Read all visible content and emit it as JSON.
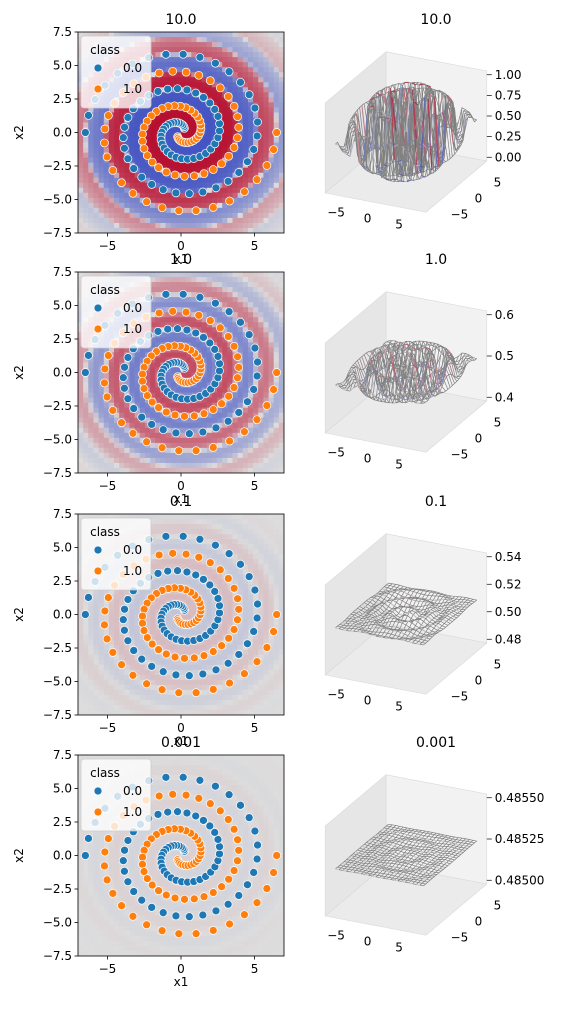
{
  "figure": {
    "colors": {
      "class0": "#1f77b4",
      "class1": "#ff7f0e",
      "cmap_low": "#3b4cc0",
      "cmap_mid": "#dddddd",
      "cmap_high": "#b40426",
      "surface_wire": "#808080",
      "pane": "#f2f2f2",
      "grid": "#d9d9d9"
    },
    "legend_title": "class",
    "xlabel": "x1",
    "ylabel": "x2"
  },
  "chart_data": [
    {
      "type": "scatter",
      "title": "10.0",
      "xlabel": "x1",
      "ylabel": "x2",
      "xlim": [
        -7,
        7
      ],
      "ylim": [
        -7.5,
        7.5
      ],
      "xticks": [
        -5,
        0,
        5
      ],
      "yticks": [
        -7.5,
        -5.0,
        -2.5,
        0.0,
        2.5,
        5.0,
        7.5
      ],
      "ytick_labels": [
        "−7.5",
        "−5.0",
        "−2.5",
        "0.0",
        "2.5",
        "5.0",
        "7.5"
      ],
      "xtick_labels": [
        "−5",
        "0",
        "5"
      ],
      "legend": {
        "title": "class",
        "entries": [
          "0.0",
          "1.0"
        ],
        "loc": "upper left"
      },
      "series": [
        {
          "name": "0.0",
          "spiral": {
            "turns": 2.5,
            "r_max": 6.5,
            "phase_deg": 0,
            "points": 75
          }
        },
        {
          "name": "1.0",
          "spiral": {
            "turns": 2.5,
            "r_max": 6.5,
            "phase_deg": 180,
            "points": 75
          }
        }
      ],
      "background": "decision probability, high contrast"
    },
    {
      "type": "surface3d",
      "title": "10.0",
      "zlim": [
        0.0,
        1.0
      ],
      "zticks": [
        "0.00",
        "0.25",
        "0.50",
        "0.75",
        "1.00"
      ],
      "xticks": [
        "−5",
        "0",
        "5"
      ],
      "yticks": [
        "−5",
        "0",
        "5"
      ]
    },
    {
      "type": "scatter",
      "title": "1.0",
      "xlabel": "x1",
      "ylabel": "x2",
      "xlim": [
        -7,
        7
      ],
      "ylim": [
        -7.5,
        7.5
      ],
      "xticks": [
        -5,
        0,
        5
      ],
      "yticks": [
        -7.5,
        -5.0,
        -2.5,
        0.0,
        2.5,
        5.0,
        7.5
      ],
      "ytick_labels": [
        "−7.5",
        "−5.0",
        "−2.5",
        "0.0",
        "2.5",
        "5.0",
        "7.5"
      ],
      "xtick_labels": [
        "−5",
        "0",
        "5"
      ],
      "legend": {
        "title": "class",
        "entries": [
          "0.0",
          "1.0"
        ],
        "loc": "upper left"
      },
      "series": [
        {
          "name": "0.0",
          "spiral": {
            "turns": 2.5,
            "r_max": 6.5,
            "phase_deg": 0,
            "points": 75
          }
        },
        {
          "name": "1.0",
          "spiral": {
            "turns": 2.5,
            "r_max": 6.5,
            "phase_deg": 180,
            "points": 75
          }
        }
      ],
      "background": "decision probability, medium contrast"
    },
    {
      "type": "surface3d",
      "title": "1.0",
      "zlim": [
        0.38,
        0.62
      ],
      "zticks": [
        "0.4",
        "0.5",
        "0.6"
      ],
      "xticks": [
        "−5",
        "0",
        "5"
      ],
      "yticks": [
        "−5",
        "0",
        "5"
      ]
    },
    {
      "type": "scatter",
      "title": "0.1",
      "xlabel": "x1",
      "ylabel": "x2",
      "xlim": [
        -7,
        7
      ],
      "ylim": [
        -7.5,
        7.5
      ],
      "xticks": [
        -5,
        0,
        5
      ],
      "yticks": [
        -7.5,
        -5.0,
        -2.5,
        0.0,
        2.5,
        5.0,
        7.5
      ],
      "ytick_labels": [
        "−7.5",
        "−5.0",
        "−2.5",
        "0.0",
        "2.5",
        "5.0",
        "7.5"
      ],
      "xtick_labels": [
        "−5",
        "0",
        "5"
      ],
      "legend": {
        "title": "class",
        "entries": [
          "0.0",
          "1.0"
        ],
        "loc": "upper left"
      },
      "series": [
        {
          "name": "0.0",
          "spiral": {
            "turns": 2.5,
            "r_max": 6.5,
            "phase_deg": 0,
            "points": 75
          }
        },
        {
          "name": "1.0",
          "spiral": {
            "turns": 2.5,
            "r_max": 6.5,
            "phase_deg": 180,
            "points": 75
          }
        }
      ],
      "background": "decision probability, low contrast"
    },
    {
      "type": "surface3d",
      "title": "0.1",
      "zlim": [
        0.475,
        0.545
      ],
      "zticks": [
        "0.48",
        "0.50",
        "0.52",
        "0.54"
      ],
      "xticks": [
        "−5",
        "0",
        "5"
      ],
      "yticks": [
        "−5",
        "0",
        "5"
      ]
    },
    {
      "type": "scatter",
      "title": "0.001",
      "xlabel": "x1",
      "ylabel": "x2",
      "xlim": [
        -7,
        7
      ],
      "ylim": [
        -7.5,
        7.5
      ],
      "xticks": [
        -5,
        0,
        5
      ],
      "yticks": [
        -7.5,
        -5.0,
        -2.5,
        0.0,
        2.5,
        5.0,
        7.5
      ],
      "ytick_labels": [
        "−7.5",
        "−5.0",
        "−2.5",
        "0.0",
        "2.5",
        "5.0",
        "7.5"
      ],
      "xtick_labels": [
        "−5",
        "0",
        "5"
      ],
      "legend": {
        "title": "class",
        "entries": [
          "0.0",
          "1.0"
        ],
        "loc": "upper left"
      },
      "series": [
        {
          "name": "0.0",
          "spiral": {
            "turns": 2.5,
            "r_max": 6.5,
            "phase_deg": 0,
            "points": 75
          }
        },
        {
          "name": "1.0",
          "spiral": {
            "turns": 2.5,
            "r_max": 6.5,
            "phase_deg": 180,
            "points": 75
          }
        }
      ],
      "background": "decision probability, very low contrast"
    },
    {
      "type": "surface3d",
      "title": "0.001",
      "zlim": [
        0.4849,
        0.4856
      ],
      "zticks": [
        "0.48500",
        "0.48525",
        "0.48550"
      ],
      "xticks": [
        "−5",
        "0",
        "5"
      ],
      "yticks": [
        "−5",
        "0",
        "5"
      ]
    }
  ]
}
